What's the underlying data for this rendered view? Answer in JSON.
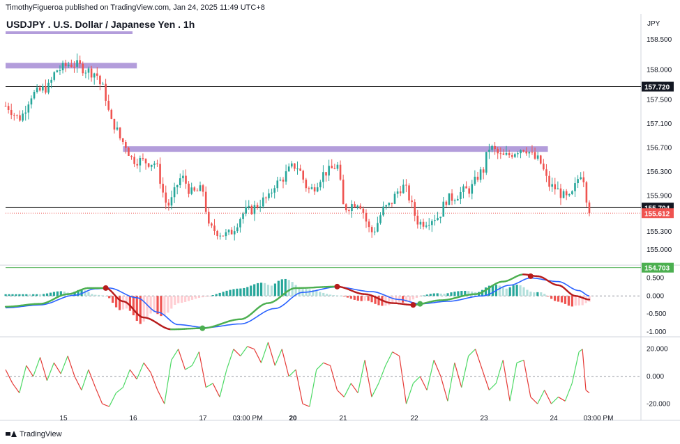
{
  "header": {
    "published_line": "TimothyFigueroa published on TradingView.com, Jan 24, 2025 11:49 UTC+8",
    "symbol_title": "USDJPY . U.S. Dollar / Japanese Yen . 1h",
    "currency": "JPY"
  },
  "footer": {
    "brand": "TradingView"
  },
  "colors": {
    "up": "#26a69a",
    "down": "#ef5350",
    "zone": "#b39ddb",
    "signal_green": "#4caf50",
    "signal_red": "#b71c1c",
    "macd_blue": "#2962ff",
    "osc_green": "#4cd964",
    "osc_red": "#e53935"
  },
  "chart_data": [
    {
      "type": "candlestick",
      "title": "USDJPY . U.S. Dollar / Japanese Yen . 1h",
      "ylim": [
        154.78,
        158.7
      ],
      "ytick_labels": [
        "158.500",
        "158.000",
        "157.500",
        "157.100",
        "156.700",
        "156.300",
        "155.900",
        "155.300",
        "155.000"
      ],
      "ytick_values": [
        158.5,
        158.0,
        157.5,
        157.1,
        156.7,
        156.3,
        155.9,
        155.3,
        155.0
      ],
      "xtick_labels": [
        "15",
        "16",
        "17",
        "03:00 PM",
        "20",
        "21",
        "22",
        "23",
        "24",
        "03:00 PM"
      ],
      "xtick_bold": [
        "20"
      ],
      "horizontal_lines": [
        {
          "value": 157.72,
          "label": "157.720",
          "color": "#000000"
        },
        {
          "value": 155.704,
          "label": "155.704",
          "color": "#000000"
        },
        {
          "value": 154.703,
          "label": "154.703",
          "color": "#4caf50"
        }
      ],
      "last_price": {
        "value": 155.612,
        "label": "155.612",
        "color": "#ef5350"
      },
      "zones": [
        {
          "from": 0,
          "to": 0.19,
          "value": 158.07
        },
        {
          "from": 0.17,
          "to": 0.785,
          "value": 156.68
        }
      ],
      "path_anchors": [
        [
          0,
          157.4
        ],
        [
          0.02,
          157.2
        ],
        [
          0.04,
          157.6
        ],
        [
          0.06,
          157.7
        ],
        [
          0.075,
          158.0
        ],
        [
          0.095,
          158.1
        ],
        [
          0.13,
          157.95
        ],
        [
          0.14,
          157.7
        ],
        [
          0.155,
          157.1
        ],
        [
          0.17,
          156.8
        ],
        [
          0.185,
          156.5
        ],
        [
          0.215,
          156.45
        ],
        [
          0.235,
          155.75
        ],
        [
          0.255,
          156.2
        ],
        [
          0.27,
          155.95
        ],
        [
          0.285,
          156.0
        ],
        [
          0.295,
          155.35
        ],
        [
          0.32,
          155.25
        ],
        [
          0.35,
          155.65
        ],
        [
          0.38,
          155.85
        ],
        [
          0.39,
          156.1
        ],
        [
          0.42,
          156.4
        ],
        [
          0.44,
          156.0
        ],
        [
          0.465,
          156.3
        ],
        [
          0.48,
          156.4
        ],
        [
          0.49,
          155.7
        ],
        [
          0.51,
          155.8
        ],
        [
          0.53,
          155.3
        ],
        [
          0.55,
          155.7
        ],
        [
          0.575,
          156.05
        ],
        [
          0.6,
          155.45
        ],
        [
          0.625,
          155.55
        ],
        [
          0.64,
          155.85
        ],
        [
          0.67,
          156.0
        ],
        [
          0.69,
          156.3
        ],
        [
          0.7,
          156.7
        ],
        [
          0.72,
          156.55
        ],
        [
          0.75,
          156.7
        ],
        [
          0.77,
          156.5
        ],
        [
          0.79,
          156.05
        ],
        [
          0.815,
          155.85
        ],
        [
          0.835,
          156.3
        ],
        [
          0.84,
          155.9
        ],
        [
          0.845,
          155.612
        ]
      ]
    },
    {
      "type": "line",
      "ylim": [
        -1.1,
        0.8
      ],
      "ytick_labels": [
        "0.500",
        "0.000",
        "-0.500",
        "-1.000"
      ],
      "ytick_values": [
        0.5,
        0.0,
        -0.5,
        -1.0
      ],
      "series": [],
      "fast_anchors": [
        [
          0,
          -0.3
        ],
        [
          0.05,
          -0.22
        ],
        [
          0.09,
          0.05
        ],
        [
          0.12,
          0.22
        ],
        [
          0.145,
          0.22
        ],
        [
          0.17,
          -0.15
        ],
        [
          0.2,
          -0.6
        ],
        [
          0.24,
          -0.93
        ],
        [
          0.285,
          -0.9
        ],
        [
          0.34,
          -0.65
        ],
        [
          0.38,
          -0.2
        ],
        [
          0.42,
          0.22
        ],
        [
          0.48,
          0.26
        ],
        [
          0.52,
          0.05
        ],
        [
          0.56,
          -0.2
        ],
        [
          0.59,
          -0.25
        ],
        [
          0.63,
          -0.12
        ],
        [
          0.68,
          0.05
        ],
        [
          0.72,
          0.4
        ],
        [
          0.75,
          0.6
        ],
        [
          0.77,
          0.55
        ],
        [
          0.8,
          0.3
        ],
        [
          0.825,
          0.0
        ],
        [
          0.845,
          -0.1
        ]
      ],
      "slow_anchors": [
        [
          0,
          -0.33
        ],
        [
          0.05,
          -0.25
        ],
        [
          0.1,
          0.02
        ],
        [
          0.13,
          0.2
        ],
        [
          0.15,
          0.22
        ],
        [
          0.19,
          -0.05
        ],
        [
          0.22,
          -0.45
        ],
        [
          0.25,
          -0.8
        ],
        [
          0.29,
          -0.88
        ],
        [
          0.34,
          -0.78
        ],
        [
          0.39,
          -0.35
        ],
        [
          0.43,
          0.1
        ],
        [
          0.48,
          0.25
        ],
        [
          0.53,
          0.12
        ],
        [
          0.57,
          -0.1
        ],
        [
          0.6,
          -0.22
        ],
        [
          0.64,
          -0.15
        ],
        [
          0.69,
          0.0
        ],
        [
          0.73,
          0.3
        ],
        [
          0.76,
          0.5
        ],
        [
          0.8,
          0.4
        ],
        [
          0.83,
          0.15
        ],
        [
          0.845,
          0.0
        ]
      ],
      "cross_markers": [
        [
          0.145,
          0.22,
          "red"
        ],
        [
          0.285,
          -0.9,
          "green"
        ],
        [
          0.48,
          0.26,
          "red"
        ],
        [
          0.59,
          -0.25,
          "red"
        ],
        [
          0.6,
          -0.22,
          "green"
        ],
        [
          0.76,
          0.55,
          "red"
        ]
      ]
    },
    {
      "type": "line",
      "ylim": [
        -27,
        28
      ],
      "ytick_labels": [
        "20.000",
        "0.000",
        "-20.000"
      ],
      "ytick_values": [
        20,
        0,
        -20
      ],
      "series": [],
      "osc_anchors": [
        [
          0,
          5
        ],
        [
          0.01,
          -5
        ],
        [
          0.02,
          -12
        ],
        [
          0.03,
          8
        ],
        [
          0.04,
          0
        ],
        [
          0.05,
          14
        ],
        [
          0.06,
          -3
        ],
        [
          0.07,
          10
        ],
        [
          0.08,
          2
        ],
        [
          0.09,
          15
        ],
        [
          0.1,
          0
        ],
        [
          0.11,
          -10
        ],
        [
          0.12,
          5
        ],
        [
          0.13,
          -8
        ],
        [
          0.14,
          -20
        ],
        [
          0.15,
          -22
        ],
        [
          0.16,
          -12
        ],
        [
          0.17,
          -8
        ],
        [
          0.18,
          5
        ],
        [
          0.19,
          -2
        ],
        [
          0.2,
          10
        ],
        [
          0.21,
          3
        ],
        [
          0.22,
          -10
        ],
        [
          0.23,
          -20
        ],
        [
          0.24,
          12
        ],
        [
          0.25,
          20
        ],
        [
          0.26,
          5
        ],
        [
          0.27,
          8
        ],
        [
          0.28,
          18
        ],
        [
          0.29,
          -8
        ],
        [
          0.3,
          -5
        ],
        [
          0.31,
          -15
        ],
        [
          0.32,
          5
        ],
        [
          0.33,
          20
        ],
        [
          0.34,
          15
        ],
        [
          0.35,
          22
        ],
        [
          0.36,
          20
        ],
        [
          0.37,
          10
        ],
        [
          0.38,
          25
        ],
        [
          0.39,
          8
        ],
        [
          0.4,
          20
        ],
        [
          0.41,
          0
        ],
        [
          0.42,
          5
        ],
        [
          0.43,
          -20
        ],
        [
          0.44,
          -22
        ],
        [
          0.45,
          5
        ],
        [
          0.46,
          10
        ],
        [
          0.47,
          8
        ],
        [
          0.48,
          -10
        ],
        [
          0.49,
          -15
        ],
        [
          0.5,
          -5
        ],
        [
          0.51,
          -12
        ],
        [
          0.52,
          12
        ],
        [
          0.53,
          -15
        ],
        [
          0.54,
          -5
        ],
        [
          0.55,
          8
        ],
        [
          0.56,
          18
        ],
        [
          0.57,
          15
        ],
        [
          0.58,
          -20
        ],
        [
          0.59,
          -5
        ],
        [
          0.6,
          0
        ],
        [
          0.61,
          -10
        ],
        [
          0.62,
          12
        ],
        [
          0.63,
          0
        ],
        [
          0.64,
          -18
        ],
        [
          0.65,
          10
        ],
        [
          0.66,
          -8
        ],
        [
          0.67,
          15
        ],
        [
          0.68,
          20
        ],
        [
          0.69,
          5
        ],
        [
          0.7,
          -10
        ],
        [
          0.71,
          -5
        ],
        [
          0.72,
          12
        ],
        [
          0.73,
          -18
        ],
        [
          0.74,
          10
        ],
        [
          0.75,
          12
        ],
        [
          0.76,
          -15
        ],
        [
          0.77,
          -20
        ],
        [
          0.78,
          -10
        ],
        [
          0.79,
          -20
        ],
        [
          0.8,
          -15
        ],
        [
          0.81,
          -18
        ],
        [
          0.82,
          -5
        ],
        [
          0.83,
          18
        ],
        [
          0.835,
          20
        ],
        [
          0.84,
          -10
        ],
        [
          0.845,
          -12
        ]
      ]
    }
  ]
}
